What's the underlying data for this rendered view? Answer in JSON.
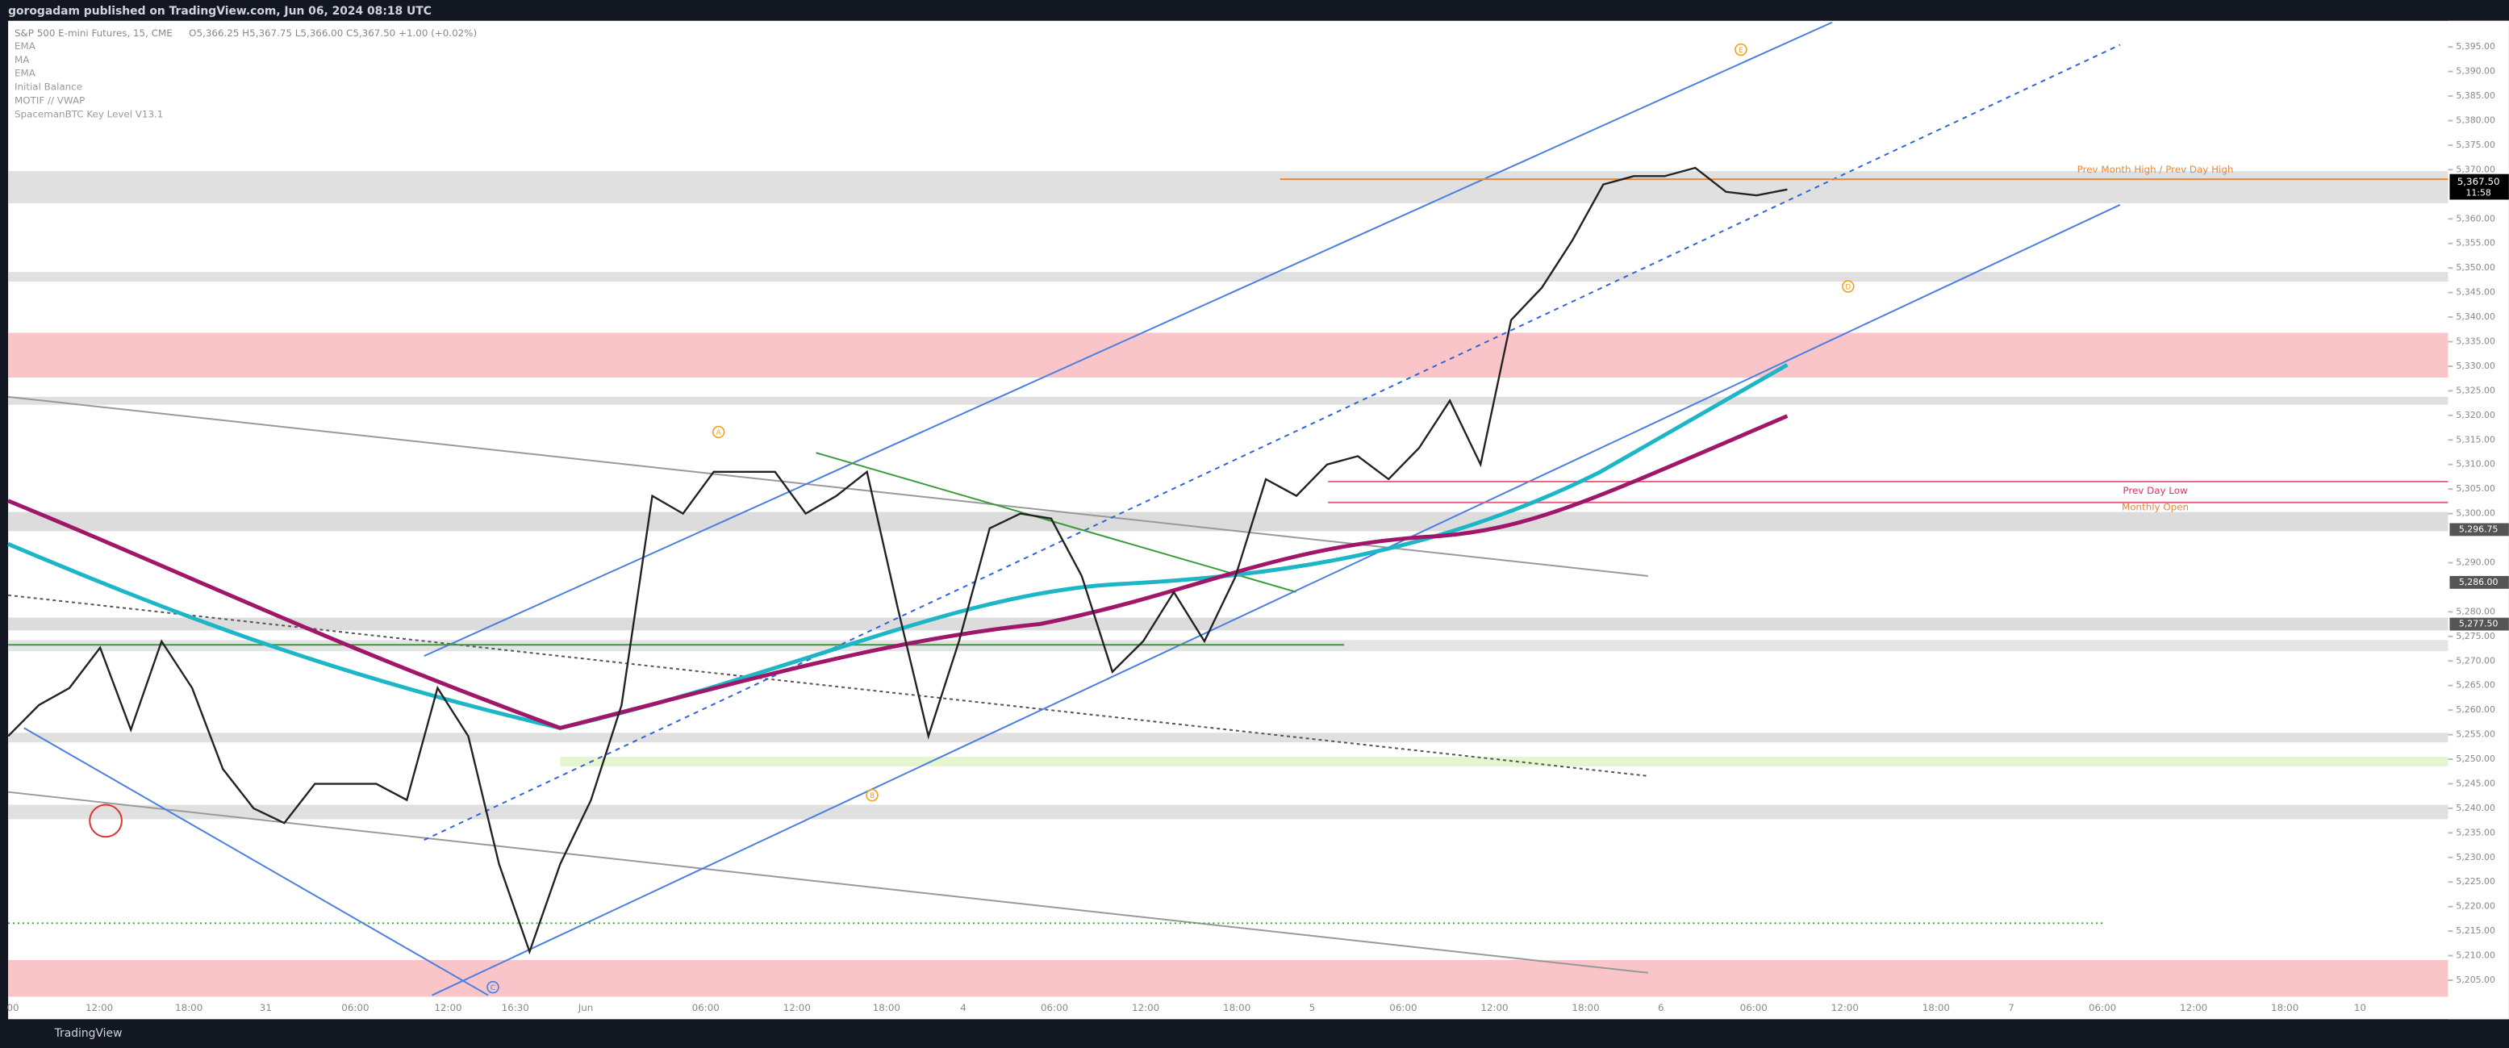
{
  "header": {
    "title": "gorogadam published on TradingView.com, Jun 06, 2024 08:18 UTC"
  },
  "legend": {
    "symbol": "S&P 500 E-mini Futures, 15, CME",
    "ohlc": "O5,366.25 H5,367.75 L5,366.00 C5,367.50 +1.00 (+0.02%)",
    "indicators": [
      "EMA",
      "MA",
      "EMA",
      "Initial Balance",
      "MOTIF // VWAP",
      "SpacemanBTC Key Level V13.1"
    ]
  },
  "chart_data": {
    "type": "line",
    "series": [
      {
        "color": "#222222",
        "values": [
          5254.7,
          5261,
          5264.5,
          5272.7,
          5256,
          5274,
          5264.5,
          5248,
          5240,
          5237,
          5245,
          5245,
          5245,
          5241.7,
          5264.5,
          5254.7,
          5228.7,
          5210.8,
          5228.7,
          5241.7,
          5261,
          5303.6,
          5300,
          5308.5,
          5308.5,
          5308.5,
          5300,
          5303.6,
          5308.5,
          5280.8,
          5254.7,
          5274,
          5297,
          5300,
          5299,
          5287.3,
          5267.8,
          5274,
          5284,
          5274,
          5287,
          5307,
          5303.6,
          5310,
          5311.7,
          5307,
          5313.4,
          5323,
          5310,
          5339.4,
          5346,
          5355.7,
          5367,
          5368.7,
          5368.7,
          5370.4,
          5365.5,
          5364.8,
          5366
        ]
      }
    ],
    "ylim": [
      5200,
      5400
    ],
    "yticks": [
      {
        "value": 5205,
        "label": "5,205.00"
      },
      {
        "value": 5210,
        "label": "5,210.00"
      },
      {
        "value": 5215,
        "label": "5,215.00"
      },
      {
        "value": 5220,
        "label": "5,220.00"
      },
      {
        "value": 5225,
        "label": "5,225.00"
      },
      {
        "value": 5230,
        "label": "5,230.00"
      },
      {
        "value": 5235,
        "label": "5,235.00"
      },
      {
        "value": 5240,
        "label": "5,240.00"
      },
      {
        "value": 5245,
        "label": "5,245.00"
      },
      {
        "value": 5250,
        "label": "5,250.00"
      },
      {
        "value": 5255,
        "label": "5,255.00"
      },
      {
        "value": 5260,
        "label": "5,260.00"
      },
      {
        "value": 5265,
        "label": "5,265.00"
      },
      {
        "value": 5270,
        "label": "5,270.00"
      },
      {
        "value": 5275,
        "label": "5,275.00"
      },
      {
        "value": 5280,
        "label": "5,280.00"
      },
      {
        "value": 5290,
        "label": "5,290.00"
      },
      {
        "value": 5300,
        "label": "5,300.00"
      },
      {
        "value": 5305,
        "label": "5,305.00"
      },
      {
        "value": 5310,
        "label": "5,310.00"
      },
      {
        "value": 5315,
        "label": "5,315.00"
      },
      {
        "value": 5320,
        "label": "5,320.00"
      },
      {
        "value": 5325,
        "label": "5,325.00"
      },
      {
        "value": 5330,
        "label": "5,330.00"
      },
      {
        "value": 5335,
        "label": "5,335.00"
      },
      {
        "value": 5340,
        "label": "5,340.00"
      },
      {
        "value": 5345,
        "label": "5,345.00"
      },
      {
        "value": 5350,
        "label": "5,350.00"
      },
      {
        "value": 5355,
        "label": "5,355.00"
      },
      {
        "value": 5360,
        "label": "5,360.00"
      },
      {
        "value": 5370,
        "label": "5,370.00"
      },
      {
        "value": 5375,
        "label": "5,375.00"
      },
      {
        "value": 5380,
        "label": "5,380.00"
      },
      {
        "value": 5385,
        "label": "5,385.00"
      },
      {
        "value": 5390,
        "label": "5,390.00"
      },
      {
        "value": 5395,
        "label": "5,395.00"
      }
    ],
    "price_badges": [
      {
        "value": 5296.75,
        "label": "5,296.75"
      },
      {
        "value": 5286,
        "label": "5,286.00"
      },
      {
        "value": 5277.5,
        "label": "5,277.50"
      }
    ],
    "last_price": {
      "value": 5367.5,
      "label": "5,367.50",
      "countdown": "11:58"
    },
    "annotations": [
      {
        "value": 5369,
        "label": "Prev Month High / Prev Day High"
      },
      {
        "value": 5303.6,
        "label": "Prev Day Low"
      },
      {
        "value": 5300.3,
        "label": "Monthly Open"
      }
    ],
    "time_labels": [
      "00",
      "12:00",
      "18:00",
      "31",
      "06:00",
      "12:00",
      "16:30",
      "Jun",
      "06:00",
      "12:00",
      "18:00",
      "4",
      "06:00",
      "12:00",
      "18:00",
      "5",
      "06:00",
      "12:00",
      "18:00",
      "6",
      "06:00",
      "12:00",
      "18:00",
      "7",
      "06:00",
      "12:00",
      "18:00",
      "10"
    ],
    "wave_labels": [
      "A",
      "B",
      "C",
      "D",
      "E"
    ]
  },
  "footer": {
    "brand": "TradingView"
  }
}
